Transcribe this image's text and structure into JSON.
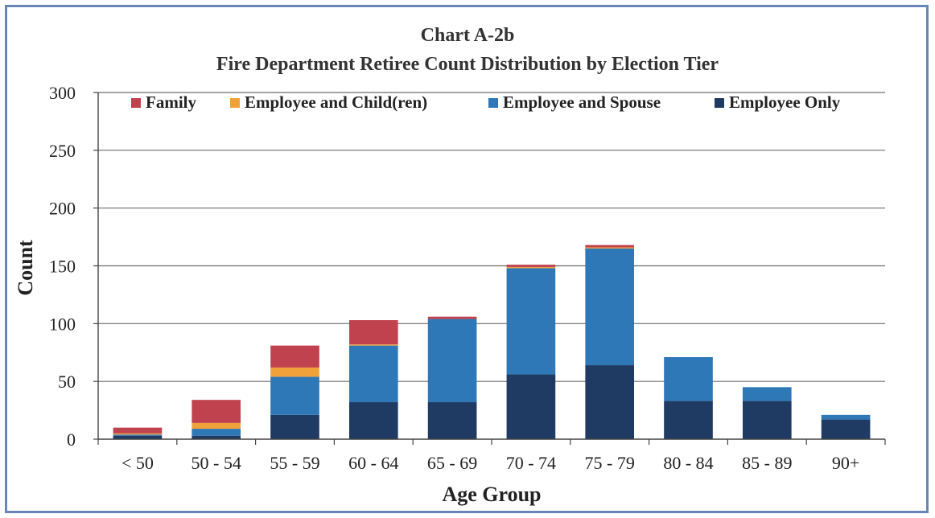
{
  "chart_data": {
    "type": "bar",
    "stacked": true,
    "title": "Chart A-2b",
    "subtitle": "Fire Department Retiree Count Distribution  by Election Tier",
    "xlabel": "Age Group",
    "ylabel": "Count",
    "ylim": [
      0,
      300
    ],
    "yticks": [
      0,
      50,
      100,
      150,
      200,
      250,
      300
    ],
    "grid": true,
    "legend_position": "top",
    "categories": [
      "< 50",
      "50 - 54",
      "55 - 59",
      "60 - 64",
      "65 - 69",
      "70 - 74",
      "75 - 79",
      "80 - 84",
      "85 - 89",
      "90+"
    ],
    "series": [
      {
        "name": "Employee Only",
        "color": "#1f3a63",
        "values": [
          3,
          3,
          21,
          32,
          32,
          56,
          64,
          33,
          33,
          17
        ]
      },
      {
        "name": "Employee and Spouse",
        "color": "#2e78b7",
        "values": [
          1,
          6,
          33,
          49,
          72,
          92,
          101,
          38,
          12,
          4
        ]
      },
      {
        "name": "Employee and Child(ren)",
        "color": "#f0a13a",
        "values": [
          1,
          5,
          8,
          1,
          0,
          1,
          1,
          0,
          0,
          0
        ]
      },
      {
        "name": "Family",
        "color": "#c0424e",
        "values": [
          5,
          20,
          19,
          21,
          2,
          2,
          2,
          0,
          0,
          0
        ]
      }
    ],
    "legend_order": [
      "Family",
      "Employee and Child(ren)",
      "Employee and Spouse",
      "Employee Only"
    ]
  }
}
